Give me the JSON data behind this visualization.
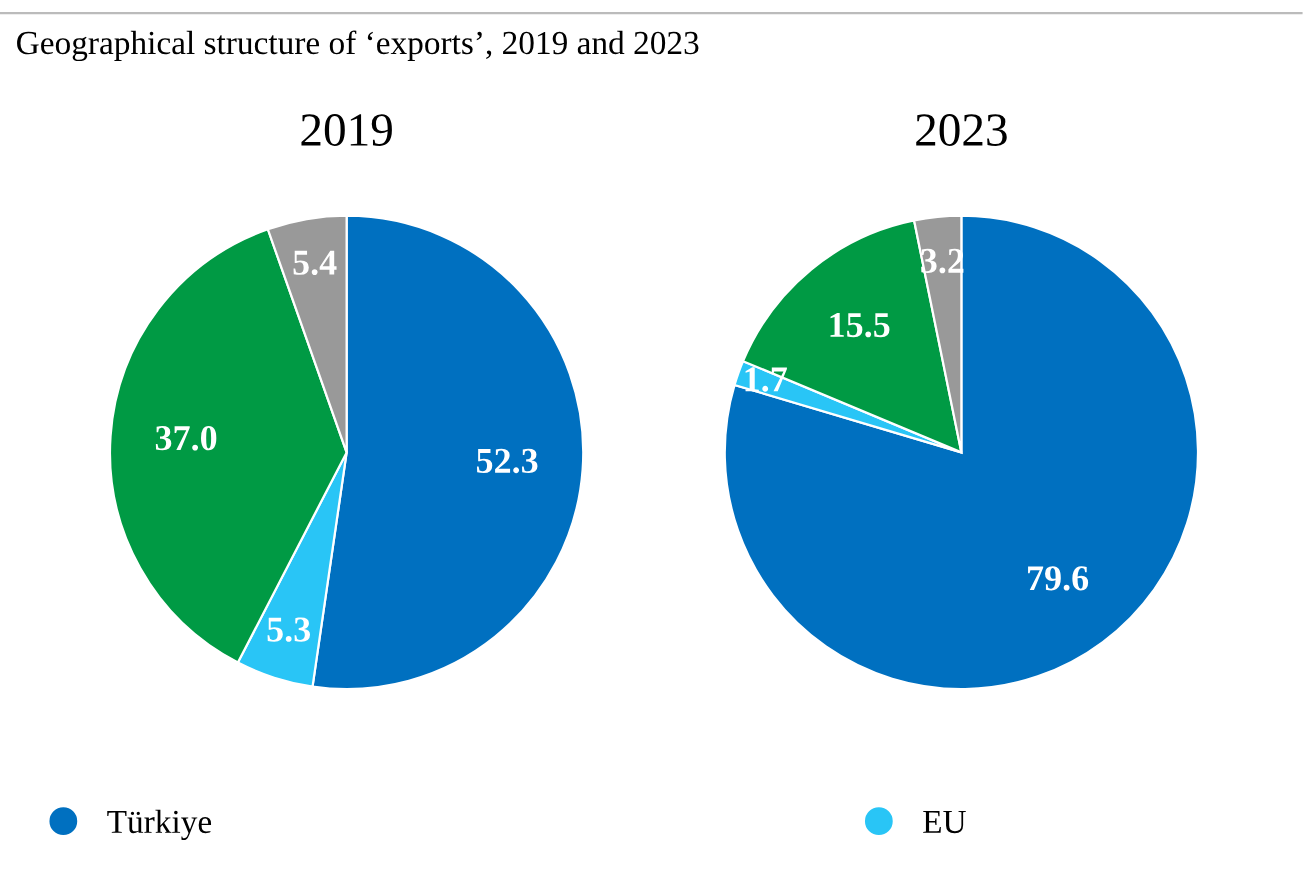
{
  "chart_data": [
    {
      "type": "pie",
      "title": "2019",
      "subtitle": "Geographical structure of ‘exports’, 2019 and 2023",
      "categories": [
        "Türkiye",
        "EU",
        null,
        null
      ],
      "values": [
        52.3,
        5.3,
        37.0,
        5.4
      ],
      "colors": [
        "#0070c0",
        "#29c5f6",
        "#009a44",
        "#999999"
      ],
      "value_labels": [
        "52.3",
        "5.3",
        "37.0",
        "5.4"
      ],
      "legend": "bottom"
    },
    {
      "type": "pie",
      "title": "2023",
      "categories": [
        null,
        null,
        null,
        null
      ],
      "values": [
        79.6,
        1.7,
        15.5,
        3.2
      ],
      "colors": [
        "#0070c0",
        "#29c5f6",
        "#009a44",
        "#999999"
      ],
      "value_labels": [
        "79.6",
        "1.7",
        "15.5",
        "3.2"
      ]
    }
  ]
}
